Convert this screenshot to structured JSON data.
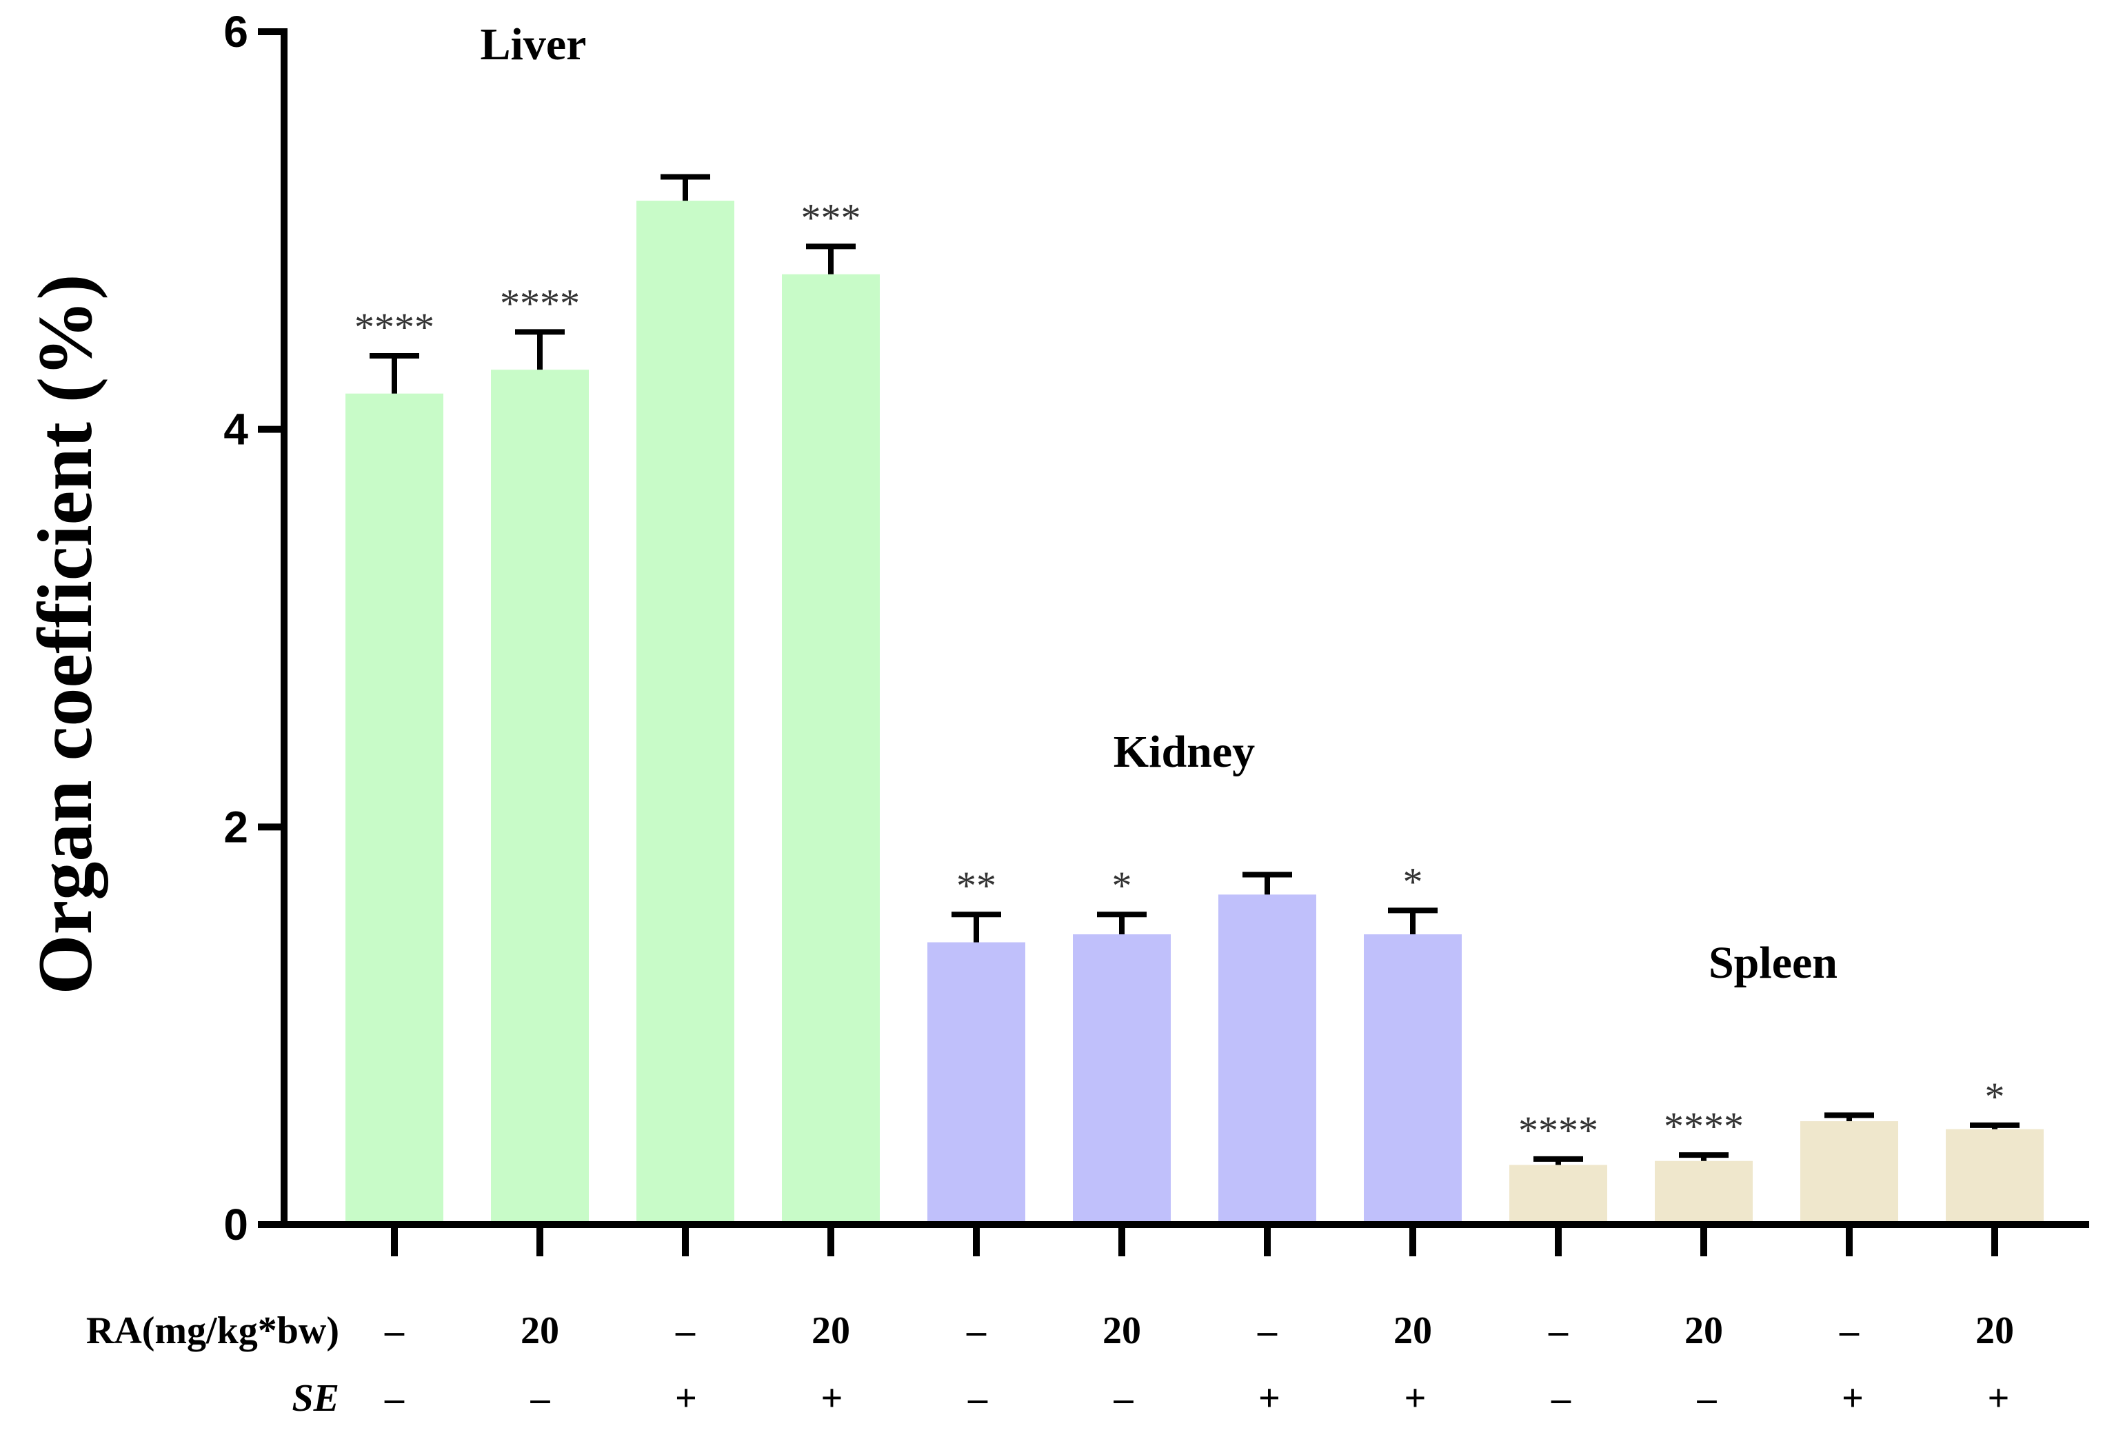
{
  "chart_data": {
    "type": "bar",
    "ylabel": "Organ coefficient (%)",
    "ylim": [
      0,
      6
    ],
    "yticks": [
      0,
      2,
      4,
      6
    ],
    "groups": [
      {
        "name": "Liver",
        "color": "#c8fbc8",
        "bars": [
          {
            "value": 4.18,
            "error": 0.19,
            "sig": "****"
          },
          {
            "value": 4.3,
            "error": 0.19,
            "sig": "****"
          },
          {
            "value": 5.15,
            "error": 0.12,
            "sig": ""
          },
          {
            "value": 4.78,
            "error": 0.14,
            "sig": "***"
          }
        ]
      },
      {
        "name": "Kidney",
        "color": "#c0c0fb",
        "bars": [
          {
            "value": 1.42,
            "error": 0.14,
            "sig": "**"
          },
          {
            "value": 1.46,
            "error": 0.1,
            "sig": "*"
          },
          {
            "value": 1.66,
            "error": 0.1,
            "sig": ""
          },
          {
            "value": 1.46,
            "error": 0.12,
            "sig": "*"
          }
        ]
      },
      {
        "name": "Spleen",
        "color": "#efe7cc",
        "bars": [
          {
            "value": 0.3,
            "error": 0.03,
            "sig": "****"
          },
          {
            "value": 0.32,
            "error": 0.03,
            "sig": "****"
          },
          {
            "value": 0.52,
            "error": 0.03,
            "sig": ""
          },
          {
            "value": 0.48,
            "error": 0.02,
            "sig": "*"
          }
        ]
      }
    ],
    "treatment_rows": [
      {
        "label": "RA(mg/kg*bw)",
        "italic": false,
        "values": [
          "–",
          "20",
          "–",
          "20",
          "–",
          "20",
          "–",
          "20",
          "–",
          "20",
          "–",
          "20"
        ]
      },
      {
        "label": "SE",
        "italic": true,
        "values": [
          "–",
          "–",
          "+",
          "+",
          "–",
          "–",
          "+",
          "+",
          "–",
          "–",
          "+",
          "+"
        ]
      }
    ]
  }
}
